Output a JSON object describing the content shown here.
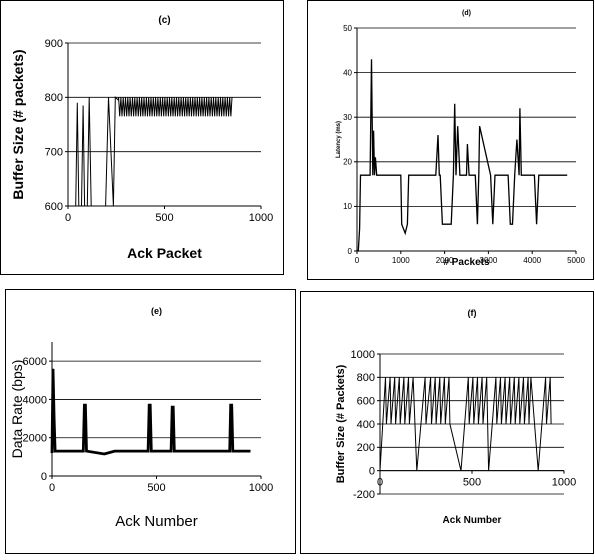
{
  "chart_data": [
    {
      "type": "line",
      "title": "(c)",
      "xlabel": "Ack Packet",
      "ylabel": "Buffer Size (# packets)",
      "xlim": [
        0,
        1000
      ],
      "ylim": [
        600,
        900
      ],
      "xticks": [
        "0",
        "500",
        "1000"
      ],
      "yticks": [
        "600",
        "700",
        "800",
        "900"
      ],
      "grid": true,
      "series": [
        {
          "values_x": [
            40,
            48,
            56,
            70,
            78,
            86,
            100,
            110,
            120,
            195,
            210,
            235,
            245,
            260,
            850
          ],
          "values_y": [
            600,
            790,
            600,
            600,
            785,
            600,
            600,
            800,
            600,
            600,
            800,
            600,
            800,
            795,
            790
          ],
          "note_oscillation_range": [
            765,
            800
          ]
        }
      ]
    },
    {
      "type": "line",
      "title": "(d)",
      "xlabel": "# Packets",
      "ylabel": "Latency (ms)",
      "xlim": [
        0,
        5000
      ],
      "ylim": [
        0,
        50
      ],
      "xticks": [
        "0",
        "1000",
        "2000",
        "3000",
        "4000",
        "5000"
      ],
      "yticks": [
        "0",
        "10",
        "20",
        "30",
        "40",
        "50"
      ],
      "grid": true,
      "series": [
        {
          "values_x": [
            0,
            30,
            60,
            80,
            300,
            330,
            360,
            380,
            400,
            420,
            450,
            1000,
            1020,
            1100,
            1150,
            1180,
            1800,
            1850,
            1880,
            1900,
            1950,
            2150,
            2200,
            2230,
            2260,
            2300,
            2350,
            2500,
            2520,
            2560,
            2700,
            2750,
            2780,
            2800,
            3050,
            3100,
            3150,
            3450,
            3500,
            3550,
            3600,
            3650,
            3700,
            3720,
            3750,
            3800,
            4050,
            4100,
            4150,
            4800
          ],
          "values_y": [
            0,
            0,
            5,
            17,
            17,
            43,
            17,
            27,
            17,
            21,
            17,
            17,
            6,
            4,
            6,
            17,
            17,
            26,
            17,
            17,
            6,
            6,
            17,
            33,
            17,
            28,
            17,
            17,
            24,
            17,
            17,
            6,
            17,
            28,
            17,
            6,
            17,
            17,
            6,
            6,
            17,
            25,
            17,
            32,
            17,
            17,
            17,
            6,
            17,
            17
          ]
        }
      ]
    },
    {
      "type": "line",
      "title": "(e)",
      "xlabel": "Ack Number",
      "ylabel": "Data Rate (bps)",
      "xlim": [
        0,
        1000
      ],
      "ylim": [
        0,
        7000
      ],
      "xticks": [
        "0",
        "500",
        "1000"
      ],
      "yticks": [
        "0",
        "2000",
        "4000",
        "6000"
      ],
      "grid": true,
      "series": [
        {
          "values_x": [
            0,
            5,
            10,
            15,
            150,
            155,
            160,
            165,
            250,
            300,
            460,
            465,
            470,
            475,
            570,
            575,
            580,
            585,
            850,
            855,
            860,
            865,
            950
          ],
          "values_y": [
            1200,
            5600,
            3000,
            1300,
            1300,
            3700,
            3700,
            1300,
            1150,
            1300,
            1300,
            3700,
            3700,
            1300,
            1300,
            3600,
            3600,
            1300,
            1300,
            3700,
            3700,
            1300,
            1300
          ]
        }
      ]
    },
    {
      "type": "line",
      "title": "(f)",
      "xlabel": "Ack Number",
      "ylabel": "Buffer Size (# Packets)",
      "xlim": [
        0,
        1000
      ],
      "ylim": [
        -200,
        1000
      ],
      "xticks": [
        "0",
        "500",
        "1000"
      ],
      "yticks": [
        "-200",
        "0",
        "200",
        "400",
        "600",
        "800",
        "1000"
      ],
      "grid": true,
      "series": [
        {
          "values_x": [
            0,
            30,
            35,
            55,
            60,
            80,
            85,
            105,
            110,
            130,
            135,
            155,
            160,
            180,
            200,
            245,
            250,
            275,
            280,
            300,
            305,
            325,
            330,
            350,
            355,
            375,
            380,
            440,
            480,
            485,
            505,
            510,
            530,
            535,
            555,
            560,
            580,
            590,
            630,
            635,
            655,
            660,
            680,
            685,
            705,
            710,
            730,
            735,
            755,
            760,
            780,
            785,
            805,
            810,
            820,
            860,
            900,
            905,
            925,
            930
          ],
          "values_y": [
            0,
            800,
            400,
            800,
            400,
            800,
            400,
            800,
            400,
            800,
            400,
            800,
            400,
            800,
            0,
            800,
            400,
            800,
            400,
            800,
            400,
            800,
            400,
            800,
            400,
            800,
            400,
            0,
            800,
            400,
            800,
            400,
            800,
            400,
            800,
            400,
            800,
            0,
            800,
            400,
            800,
            400,
            800,
            400,
            800,
            400,
            800,
            400,
            800,
            400,
            800,
            400,
            800,
            400,
            800,
            0,
            800,
            400,
            800,
            400
          ]
        }
      ]
    }
  ]
}
